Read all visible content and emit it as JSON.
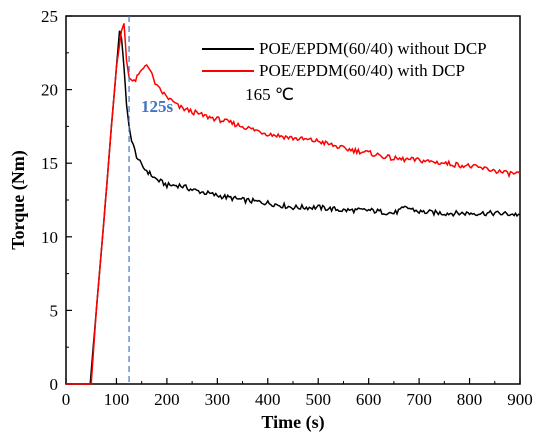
{
  "chart_data": {
    "type": "line",
    "title": "",
    "xlabel": "Time (s)",
    "ylabel": "Torque (Nm)",
    "xlim": [
      0,
      900
    ],
    "ylim": [
      0,
      25
    ],
    "xticks": [
      0,
      100,
      200,
      300,
      400,
      500,
      600,
      700,
      800,
      900
    ],
    "yticks": [
      0,
      5,
      10,
      15,
      20,
      25
    ],
    "grid": false,
    "legend_position": "top-right",
    "series": [
      {
        "name": "POE/EPDM(60/40) without DCP",
        "color": "#000000",
        "x": [
          0,
          48,
          60,
          75,
          90,
          100,
          106,
          110,
          115,
          120,
          125,
          130,
          140,
          150,
          160,
          175,
          200,
          225,
          250,
          275,
          300,
          350,
          400,
          450,
          500,
          550,
          600,
          650,
          675,
          700,
          750,
          800,
          850,
          900
        ],
        "y": [
          0,
          0,
          5,
          11,
          17.5,
          21.5,
          24,
          23.5,
          21.5,
          19,
          17.5,
          16.5,
          15.5,
          14.8,
          14.5,
          14,
          13.5,
          13.5,
          13.2,
          13,
          12.8,
          12.5,
          12.3,
          12,
          12,
          11.8,
          11.8,
          11.6,
          12,
          11.7,
          11.6,
          11.6,
          11.6,
          11.5
        ]
      },
      {
        "name": "POE/EPDM(60/40) with DCP",
        "color": "#ff0000",
        "x": [
          0,
          50,
          60,
          75,
          90,
          100,
          110,
          115,
          120,
          125,
          135,
          150,
          160,
          170,
          180,
          200,
          225,
          250,
          275,
          300,
          350,
          400,
          450,
          500,
          550,
          600,
          650,
          700,
          750,
          800,
          850,
          875,
          900
        ],
        "y": [
          0,
          0,
          5,
          11,
          17.5,
          21.5,
          24,
          24.5,
          22,
          20.8,
          20.5,
          21.3,
          21.8,
          21,
          20.2,
          19.5,
          18.8,
          18.5,
          18.2,
          18,
          17.5,
          17,
          16.7,
          16.5,
          16,
          15.7,
          15.3,
          15.2,
          15,
          14.8,
          14.5,
          14.3,
          14.3
        ]
      }
    ],
    "reference_line": {
      "x": 125,
      "color": "#4472c4",
      "label": "125s"
    },
    "annotations": [
      {
        "text": "165 ℃",
        "x": 355,
        "y": 19.3
      }
    ]
  }
}
